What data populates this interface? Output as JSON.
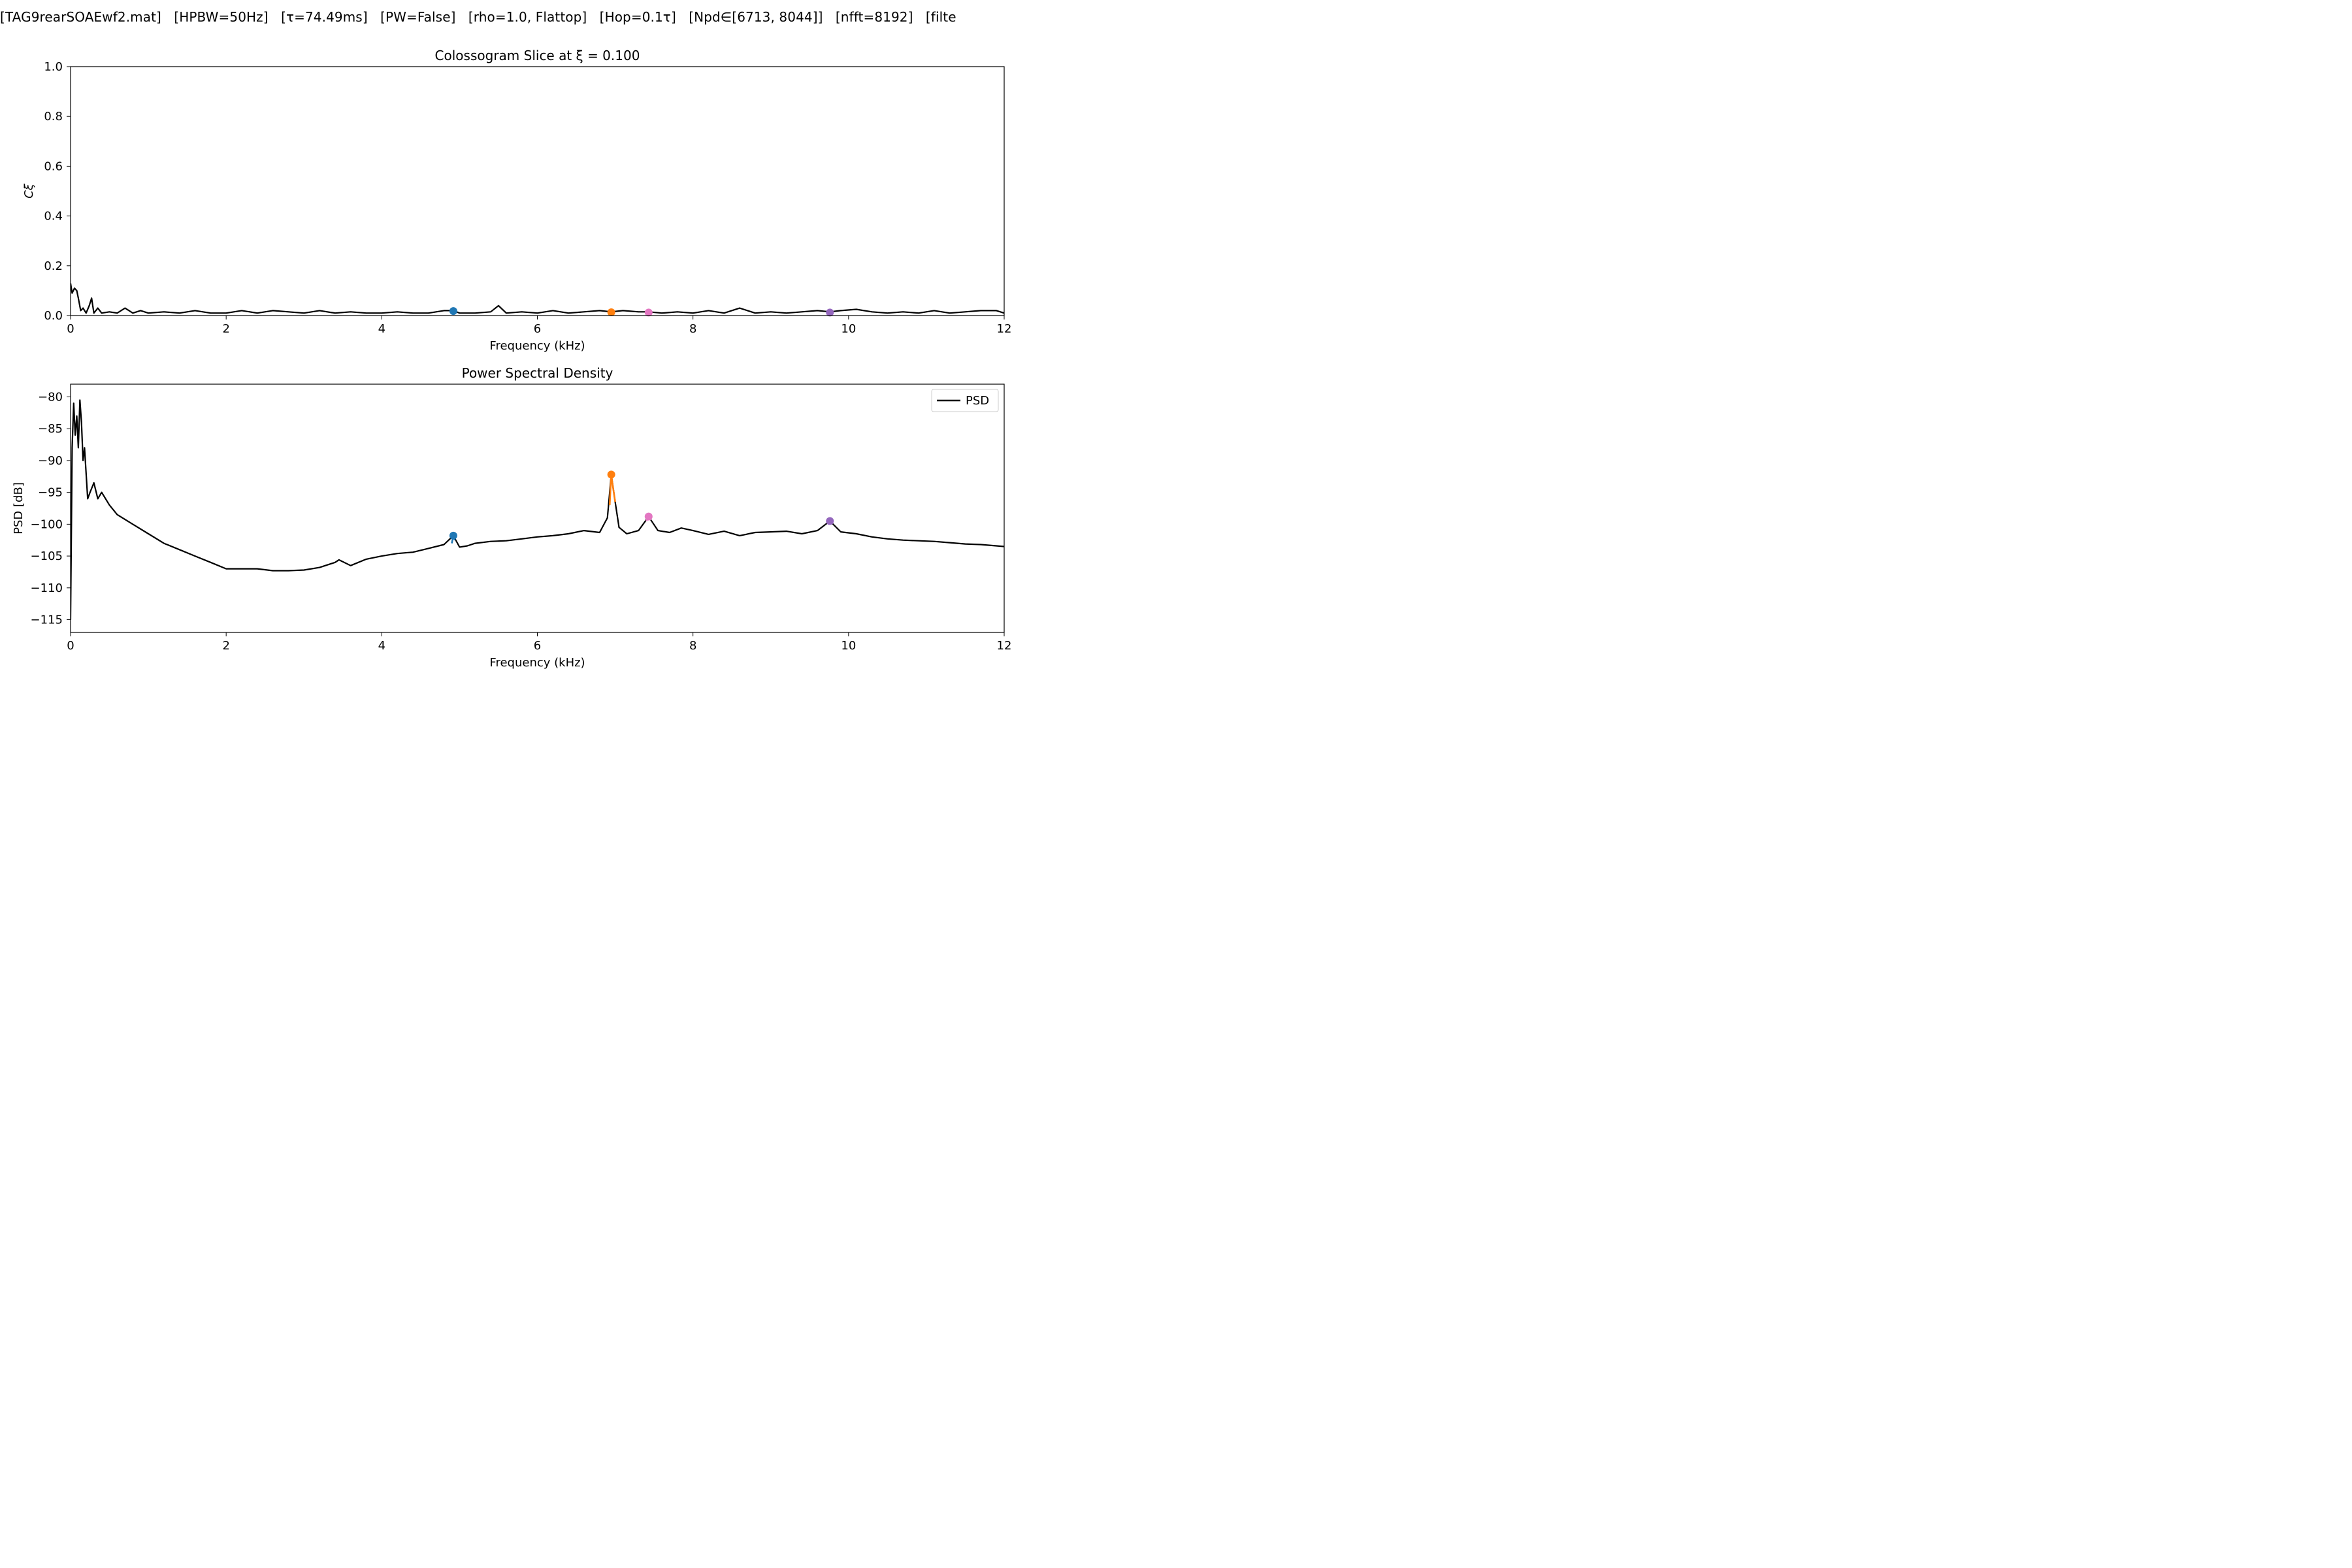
{
  "suptitle": {
    "file": "[TAG9rearSOAEwf2.mat]",
    "hpbw": "[HPBW=50Hz]",
    "tau": "[τ=74.49ms]",
    "pw": "[PW=False]",
    "window": "[rho=1.0, Flattop]",
    "hop": "[Hop=0.1τ]",
    "npd": "[Npd∈[6713, 8044]]",
    "nfft": "[nfft=8192]",
    "filter": "[filte"
  },
  "chart_data": [
    {
      "type": "line",
      "title": "Colossogram Slice at ξ = 0.100",
      "xlabel": "Frequency (kHz)",
      "ylabel": "Cξ",
      "xlim": [
        0,
        12
      ],
      "ylim": [
        0,
        1.0
      ],
      "xticks": [
        "0",
        "2",
        "4",
        "6",
        "8",
        "10",
        "12"
      ],
      "yticks": [
        "0.0",
        "0.2",
        "0.4",
        "0.6",
        "0.8",
        "1.0"
      ],
      "grid": false,
      "line_color": "#000000",
      "series": [
        {
          "x": [
            0,
            0.02,
            0.05,
            0.08,
            0.1,
            0.13,
            0.16,
            0.2,
            0.24,
            0.27,
            0.3,
            0.35,
            0.4,
            0.5,
            0.6,
            0.7,
            0.8,
            0.9,
            1.0,
            1.2,
            1.4,
            1.6,
            1.8,
            2.0,
            2.2,
            2.4,
            2.6,
            2.8,
            3.0,
            3.2,
            3.4,
            3.6,
            3.8,
            4.0,
            4.2,
            4.4,
            4.6,
            4.8,
            4.92,
            5.0,
            5.2,
            5.4,
            5.5,
            5.6,
            5.8,
            6.0,
            6.2,
            6.4,
            6.6,
            6.8,
            6.95,
            7.1,
            7.3,
            7.43,
            7.6,
            7.8,
            8.0,
            8.2,
            8.4,
            8.6,
            8.8,
            9.0,
            9.2,
            9.4,
            9.6,
            9.76,
            9.9,
            10.1,
            10.3,
            10.5,
            10.7,
            10.9,
            11.1,
            11.3,
            11.5,
            11.7,
            11.9,
            12.0
          ],
          "y": [
            0.13,
            0.09,
            0.11,
            0.1,
            0.07,
            0.02,
            0.03,
            0.01,
            0.04,
            0.07,
            0.01,
            0.03,
            0.01,
            0.015,
            0.01,
            0.03,
            0.01,
            0.02,
            0.01,
            0.015,
            0.01,
            0.02,
            0.01,
            0.01,
            0.02,
            0.01,
            0.02,
            0.015,
            0.01,
            0.02,
            0.01,
            0.015,
            0.01,
            0.01,
            0.015,
            0.01,
            0.01,
            0.02,
            0.02,
            0.01,
            0.01,
            0.015,
            0.04,
            0.01,
            0.015,
            0.01,
            0.02,
            0.01,
            0.015,
            0.02,
            0.015,
            0.02,
            0.015,
            0.015,
            0.01,
            0.015,
            0.01,
            0.02,
            0.01,
            0.03,
            0.01,
            0.015,
            0.01,
            0.015,
            0.02,
            0.015,
            0.02,
            0.025,
            0.015,
            0.01,
            0.015,
            0.01,
            0.02,
            0.01,
            0.015,
            0.02,
            0.02,
            0.01
          ]
        }
      ],
      "markers": [
        {
          "x": 4.92,
          "y": 0.018,
          "color": "#1f77b4"
        },
        {
          "x": 6.95,
          "y": 0.013,
          "color": "#ff7f0e"
        },
        {
          "x": 7.43,
          "y": 0.012,
          "color": "#e377c2"
        },
        {
          "x": 9.76,
          "y": 0.012,
          "color": "#9467bd"
        }
      ]
    },
    {
      "type": "line",
      "title": "Power Spectral Density",
      "xlabel": "Frequency (kHz)",
      "ylabel": "PSD [dB]",
      "xlim": [
        0,
        12
      ],
      "ylim": [
        -117,
        -78
      ],
      "xticks": [
        "0",
        "2",
        "4",
        "6",
        "8",
        "10",
        "12"
      ],
      "yticks": [
        "−80",
        "−85",
        "−90",
        "−95",
        "−100",
        "−105",
        "−110",
        "−115"
      ],
      "ytick_values": [
        -80,
        -85,
        -90,
        -95,
        -100,
        -105,
        -110,
        -115
      ],
      "grid": false,
      "legend": "top-right",
      "series": [
        {
          "name": "PSD",
          "color": "#000000",
          "x": [
            0,
            0.02,
            0.04,
            0.06,
            0.08,
            0.1,
            0.12,
            0.14,
            0.16,
            0.18,
            0.2,
            0.22,
            0.25,
            0.3,
            0.35,
            0.4,
            0.5,
            0.6,
            0.8,
            1.0,
            1.2,
            1.4,
            1.6,
            1.8,
            2.0,
            2.2,
            2.4,
            2.6,
            2.8,
            3.0,
            3.2,
            3.4,
            3.45,
            3.6,
            3.8,
            4.0,
            4.2,
            4.4,
            4.6,
            4.8,
            4.92,
            5.0,
            5.1,
            5.2,
            5.4,
            5.6,
            5.8,
            6.0,
            6.2,
            6.4,
            6.6,
            6.8,
            6.9,
            6.95,
            7.0,
            7.05,
            7.15,
            7.3,
            7.43,
            7.55,
            7.7,
            7.85,
            8.0,
            8.2,
            8.4,
            8.6,
            8.8,
            9.0,
            9.2,
            9.4,
            9.6,
            9.76,
            9.9,
            10.1,
            10.3,
            10.5,
            10.7,
            10.9,
            11.1,
            11.3,
            11.5,
            11.7,
            11.9,
            12.0
          ],
          "y": [
            -115,
            -88,
            -81,
            -86,
            -83,
            -88,
            -80.5,
            -84,
            -90,
            -88,
            -92,
            -96,
            -95,
            -93.5,
            -96,
            -95,
            -97,
            -98.5,
            -100,
            -101.5,
            -103,
            -104,
            -105,
            -106,
            -107,
            -107,
            -107,
            -107.3,
            -107.3,
            -107.2,
            -106.8,
            -106,
            -105.6,
            -106.5,
            -105.5,
            -105,
            -104.6,
            -104.4,
            -103.8,
            -103.2,
            -101.8,
            -103.6,
            -103.4,
            -103,
            -102.7,
            -102.6,
            -102.3,
            -102,
            -101.8,
            -101.5,
            -101,
            -101.3,
            -99,
            -92.2,
            -96.5,
            -100.5,
            -101.5,
            -101,
            -98.8,
            -101,
            -101.3,
            -100.6,
            -101,
            -101.6,
            -101.1,
            -101.8,
            -101.3,
            -101.2,
            -101.1,
            -101.5,
            -101,
            -99.5,
            -101.2,
            -101.5,
            -102,
            -102.3,
            -102.5,
            -102.6,
            -102.7,
            -102.9,
            -103.1,
            -103.2,
            -103.4,
            -103.5
          ]
        }
      ],
      "highlight_segments": [
        {
          "x": [
            6.93,
            6.95,
            6.97,
            7.0
          ],
          "y": [
            -97,
            -92.2,
            -94,
            -96.5
          ],
          "color": "#ff7f0e"
        },
        {
          "x": [
            4.9,
            4.92,
            4.94
          ],
          "y": [
            -103,
            -101.8,
            -102.5
          ],
          "color": "#1f77b4"
        },
        {
          "x": [
            7.4,
            7.43,
            7.46
          ],
          "y": [
            -99.5,
            -98.8,
            -99.3
          ],
          "color": "#e377c2"
        },
        {
          "x": [
            9.73,
            9.76,
            9.79
          ],
          "y": [
            -100,
            -99.5,
            -100
          ],
          "color": "#9467bd"
        }
      ],
      "markers": [
        {
          "x": 4.92,
          "y": -101.8,
          "color": "#1f77b4"
        },
        {
          "x": 6.95,
          "y": -92.2,
          "color": "#ff7f0e"
        },
        {
          "x": 7.43,
          "y": -98.8,
          "color": "#e377c2"
        },
        {
          "x": 9.76,
          "y": -99.5,
          "color": "#9467bd"
        }
      ]
    }
  ]
}
